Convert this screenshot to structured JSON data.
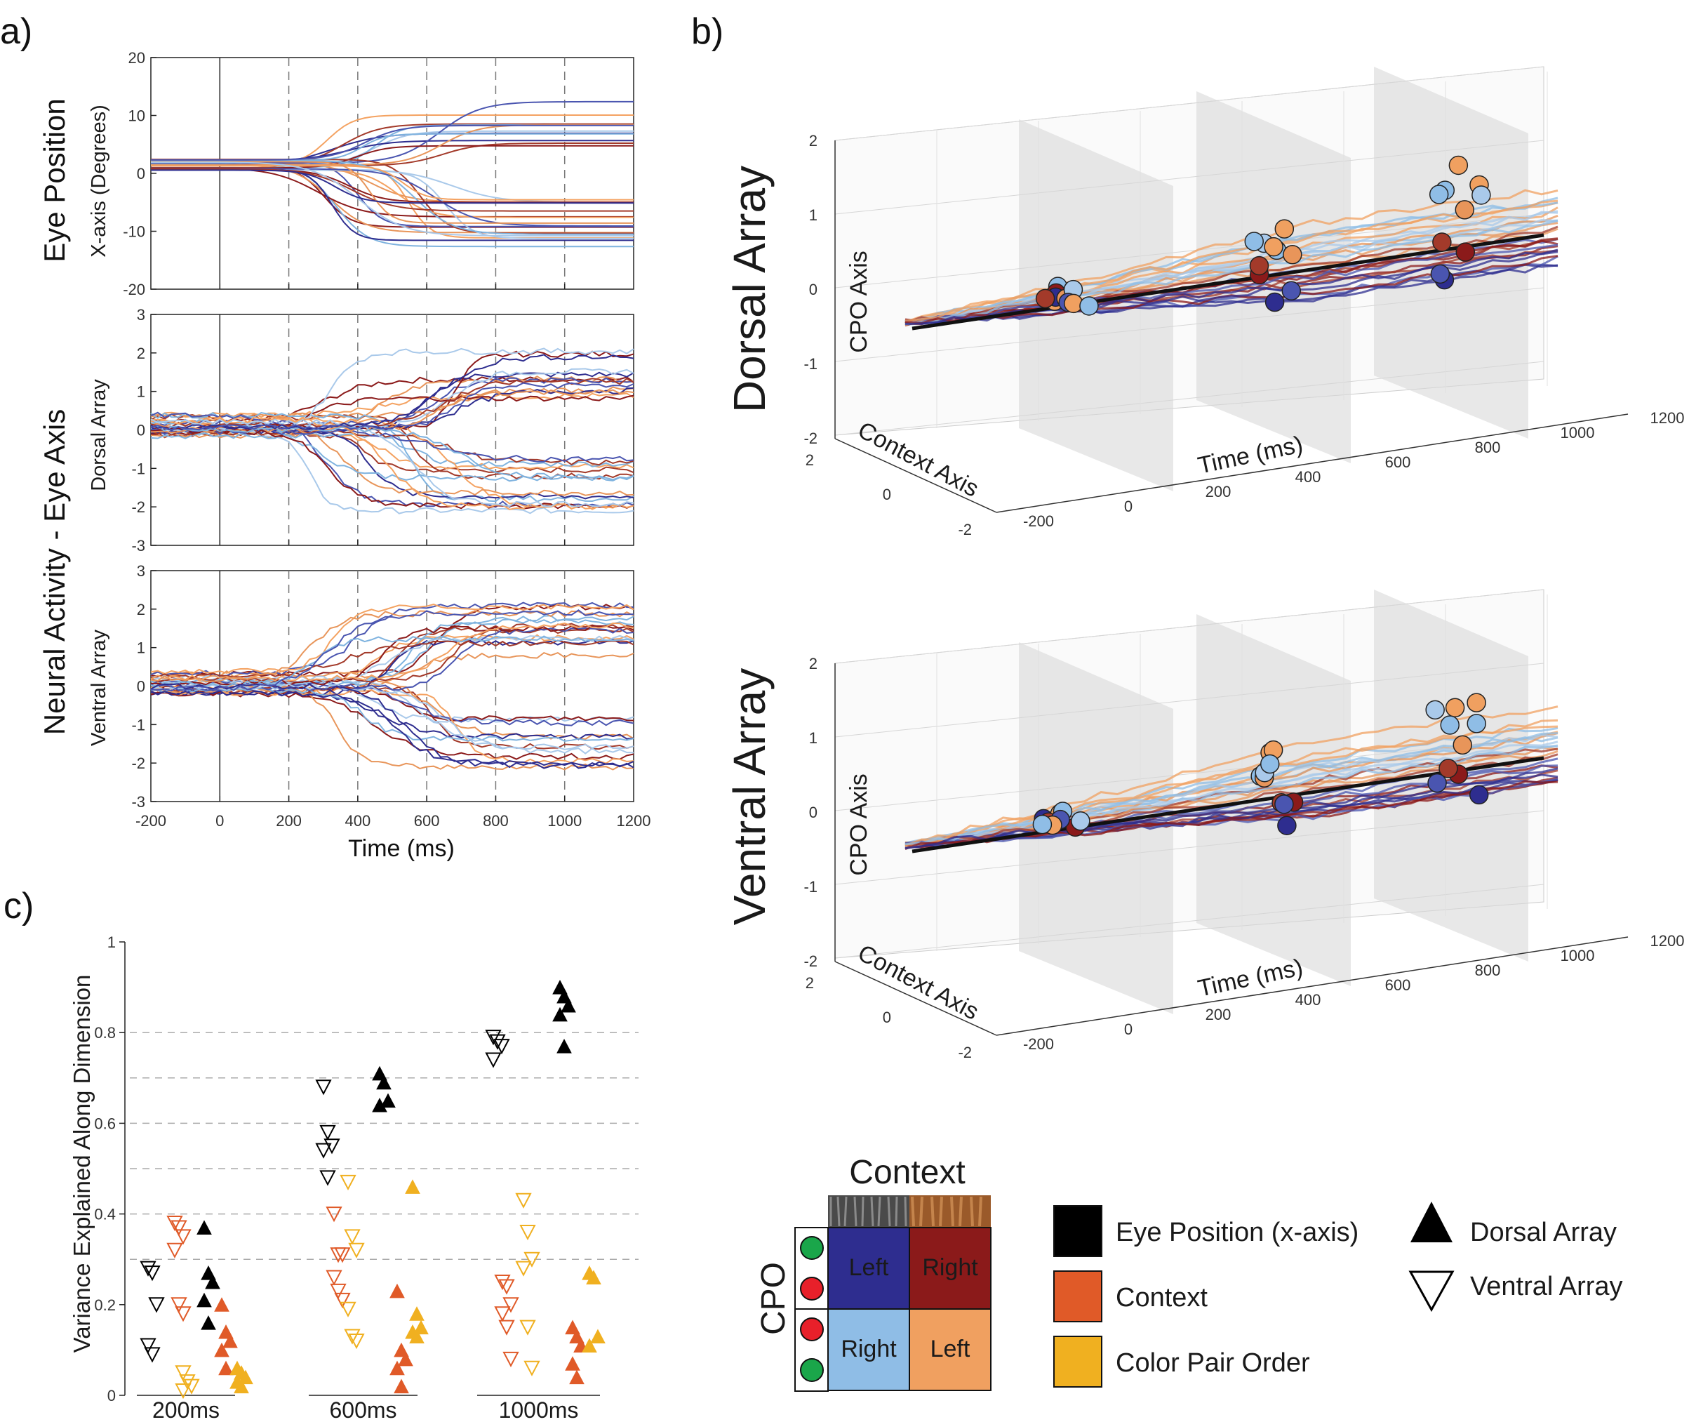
{
  "labels": {
    "a": "a)",
    "b": "b)",
    "c": "c)"
  },
  "panel_a": {
    "group_eye": "Eye Position",
    "group_neural": "Neural Activity - Eye Axis",
    "xlabel": "Time (ms)",
    "subplots": [
      {
        "ylabel": "X-axis (Degrees)",
        "ylim": [
          -20,
          20
        ],
        "yticks": [
          20,
          10,
          0,
          -10,
          -20
        ]
      },
      {
        "ylabel": "Dorsal Array",
        "ylim": [
          -3,
          3
        ],
        "yticks": [
          3,
          2,
          1,
          0,
          -1,
          -2,
          -3
        ]
      },
      {
        "ylabel": "Ventral Array",
        "ylim": [
          -3,
          3
        ],
        "yticks": [
          3,
          2,
          1,
          0,
          -1,
          -2,
          -3
        ]
      }
    ],
    "xticks": [
      "-200",
      "0",
      "200",
      "400",
      "600",
      "800",
      "1000",
      "1200"
    ],
    "xlim": [
      -200,
      1200
    ],
    "dashed_times": [
      200,
      400,
      600,
      800,
      1000
    ],
    "solid_time": 0,
    "trace_colors": [
      "#8b1a1a",
      "#a33a2a",
      "#f4a261",
      "#e8955a",
      "#a9c9ea",
      "#7fb3df",
      "#2e2d8f",
      "#4a55b0"
    ]
  },
  "panel_b": {
    "subplots": [
      {
        "title": "Dorsal Array",
        "zlabel": "CPO Axis",
        "xlabel": "Time (ms)",
        "ylabel": "Context Axis"
      },
      {
        "title": "Ventral Array",
        "zlabel": "CPO Axis",
        "xlabel": "Time (ms)",
        "ylabel": "Context Axis"
      }
    ],
    "zticks": [
      "2",
      "1",
      "0",
      "-1",
      "-2"
    ],
    "xticks": [
      "-200",
      "0",
      "200",
      "400",
      "600",
      "800",
      "1000",
      "1200"
    ],
    "yticks": [
      "2",
      "0",
      "-2"
    ]
  },
  "panel_c": {
    "ylabel": "Variance Explained Along Dimension",
    "yticks": [
      "0",
      "0.2",
      "0.4",
      "0.6",
      "0.8",
      "1"
    ],
    "gridlines": [
      0.3,
      0.4,
      0.5,
      0.6,
      0.7,
      0.8
    ],
    "groups": [
      "200ms",
      "600ms",
      "1000ms"
    ]
  },
  "chart_data": [
    {
      "type": "scatter",
      "title": "",
      "xlabel": "",
      "ylabel": "Variance Explained Along Dimension",
      "ylim": [
        0,
        1
      ],
      "categories": [
        "200ms",
        "600ms",
        "1000ms"
      ],
      "series": [
        {
          "name": "Eye Position (x-axis) - Ventral Array",
          "color": "#000000",
          "marker": "down-open",
          "values": [
            [
              0.28,
              0.27,
              0.2,
              0.11,
              0.09
            ],
            [
              0.68,
              0.58,
              0.55,
              0.54,
              0.48
            ],
            [
              0.79,
              0.78,
              0.77,
              0.74
            ]
          ]
        },
        {
          "name": "Eye Position (x-axis) - Dorsal Array",
          "color": "#000000",
          "marker": "up-filled",
          "values": [
            [
              0.37,
              0.27,
              0.25,
              0.21,
              0.16
            ],
            [
              0.71,
              0.69,
              0.65,
              0.64
            ],
            [
              0.9,
              0.88,
              0.86,
              0.84,
              0.77
            ]
          ]
        },
        {
          "name": "Context - Ventral Array",
          "color": "#e05a28",
          "marker": "down-open",
          "values": [
            [
              0.38,
              0.37,
              0.35,
              0.32,
              0.2,
              0.18
            ],
            [
              0.4,
              0.31,
              0.31,
              0.26,
              0.23,
              0.21
            ],
            [
              0.25,
              0.24,
              0.2,
              0.18,
              0.15,
              0.08
            ]
          ]
        },
        {
          "name": "Context - Dorsal Array",
          "color": "#e05a28",
          "marker": "up-filled",
          "values": [
            [
              0.2,
              0.14,
              0.12,
              0.1,
              0.06
            ],
            [
              0.23,
              0.1,
              0.08,
              0.06,
              0.02
            ],
            [
              0.15,
              0.13,
              0.11,
              0.07,
              0.04
            ]
          ]
        },
        {
          "name": "Color Pair Order - Ventral Array",
          "color": "#f0b020",
          "marker": "down-open",
          "values": [
            [
              0.05,
              0.03,
              0.02,
              0.01
            ],
            [
              0.47,
              0.35,
              0.32,
              0.19,
              0.13,
              0.12
            ],
            [
              0.43,
              0.36,
              0.3,
              0.28,
              0.15,
              0.06
            ]
          ]
        },
        {
          "name": "Color Pair Order - Dorsal Array",
          "color": "#f0b020",
          "marker": "up-filled",
          "values": [
            [
              0.06,
              0.05,
              0.04,
              0.03,
              0.02
            ],
            [
              0.46,
              0.18,
              0.15,
              0.14,
              0.13
            ],
            [
              0.27,
              0.26,
              0.13,
              0.11
            ]
          ]
        }
      ]
    }
  ],
  "legend": {
    "context_title": "Context",
    "cpo_label": "CPO",
    "cells": [
      {
        "text": "Left",
        "color": "#2e2d8f"
      },
      {
        "text": "Right",
        "color": "#8b1a1a"
      },
      {
        "text": "Right",
        "color": "#8fbde6"
      },
      {
        "text": "Left",
        "color": "#f0a060"
      }
    ],
    "entries": [
      {
        "label": "Eye Position (x-axis)",
        "color": "#000000"
      },
      {
        "label": "Context",
        "color": "#e05a28"
      },
      {
        "label": "Color Pair Order",
        "color": "#f0b020"
      }
    ],
    "markers": [
      {
        "label": "Dorsal Array"
      },
      {
        "label": "Ventral Array"
      }
    ]
  }
}
